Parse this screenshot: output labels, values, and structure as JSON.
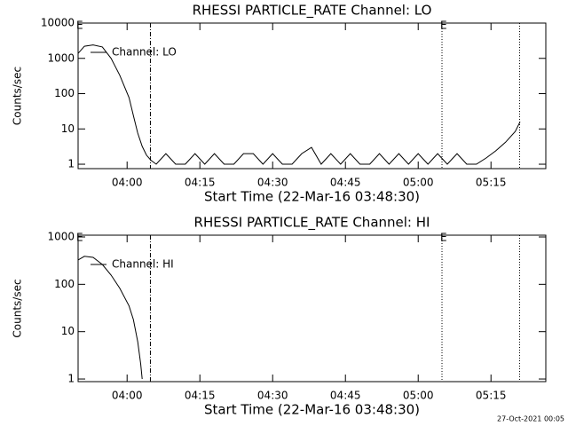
{
  "chart_data": [
    {
      "type": "line",
      "title": "RHESSI PARTICLE_RATE Channel: LO",
      "x_label": "Start Time (22-Mar-16 03:48:30)",
      "y_label": "Counts/sec",
      "log_y": true,
      "xlim": [
        229.9,
        326.3
      ],
      "ylim": [
        0.75,
        10000
      ],
      "xticks": [
        {
          "value": 240,
          "label": "04:00"
        },
        {
          "value": 255,
          "label": "04:15"
        },
        {
          "value": 270,
          "label": "04:30"
        },
        {
          "value": 285,
          "label": "04:45"
        },
        {
          "value": 300,
          "label": "05:00"
        },
        {
          "value": 315,
          "label": "05:15"
        }
      ],
      "yticks": [
        1,
        10,
        100,
        1000,
        10000
      ],
      "legend": "upper left",
      "vlines": [
        {
          "x": 244.8,
          "style": "dashdot"
        },
        {
          "x": 304.9,
          "style": "dotted"
        },
        {
          "x": 320.9,
          "style": "dotted"
        }
      ],
      "annotations": [
        {
          "text": "E",
          "x": 229.9
        },
        {
          "text": "E",
          "x": 304.9
        }
      ],
      "series": [
        {
          "name": "Channel: LO",
          "color": "#000000",
          "x": [
            229.9,
            231.2,
            233.0,
            234.9,
            236.7,
            238.5,
            240.4,
            241.3,
            242.2,
            243.1,
            244.0,
            244.9,
            246,
            248,
            250,
            252,
            254,
            256,
            258,
            260,
            262,
            264,
            266,
            268,
            270,
            272,
            274,
            276,
            278,
            280,
            282,
            284,
            286,
            288,
            290,
            292,
            294,
            296,
            298,
            300,
            302,
            304,
            306,
            308,
            310,
            312,
            314,
            316,
            318,
            320,
            321
          ],
          "values": [
            1380,
            2200,
            2400,
            2100,
            1000,
            330,
            77,
            24,
            7.6,
            3.2,
            1.8,
            1.3,
            1,
            2,
            1,
            1,
            2,
            1,
            2,
            1,
            1,
            2,
            2,
            1,
            2,
            1,
            1,
            2,
            3,
            1,
            2,
            1,
            2,
            1,
            1,
            2,
            1,
            2,
            1,
            2,
            1,
            2,
            1,
            2,
            1,
            1,
            1.5,
            2.4,
            4.2,
            8.5,
            16
          ]
        }
      ]
    },
    {
      "type": "line",
      "title": "RHESSI PARTICLE_RATE Channel: HI",
      "x_label": "Start Time (22-Mar-16 03:48:30)",
      "y_label": "Counts/sec",
      "log_y": true,
      "xlim": [
        229.9,
        326.3
      ],
      "ylim": [
        0.88,
        1090
      ],
      "xticks": [
        {
          "value": 240,
          "label": "04:00"
        },
        {
          "value": 255,
          "label": "04:15"
        },
        {
          "value": 270,
          "label": "04:30"
        },
        {
          "value": 285,
          "label": "04:45"
        },
        {
          "value": 300,
          "label": "05:00"
        },
        {
          "value": 315,
          "label": "05:15"
        }
      ],
      "yticks": [
        1,
        10,
        100,
        1000
      ],
      "legend": "upper left",
      "vlines": [
        {
          "x": 244.8,
          "style": "dashdot"
        },
        {
          "x": 304.9,
          "style": "dotted"
        },
        {
          "x": 320.9,
          "style": "dotted"
        }
      ],
      "annotations": [
        {
          "text": "E",
          "x": 229.9
        },
        {
          "text": "E",
          "x": 304.9
        }
      ],
      "series": [
        {
          "name": "Channel: HI",
          "color": "#000000",
          "x": [
            229.9,
            231.2,
            233.0,
            234.9,
            236.7,
            238.5,
            240.4,
            241.3,
            242.2,
            242.8,
            243.1
          ],
          "values": [
            327,
            390,
            370,
            262,
            156,
            82,
            35,
            18,
            6.1,
            2.1,
            1
          ]
        }
      ]
    }
  ],
  "footer": "27-Oct-2021 00:05"
}
